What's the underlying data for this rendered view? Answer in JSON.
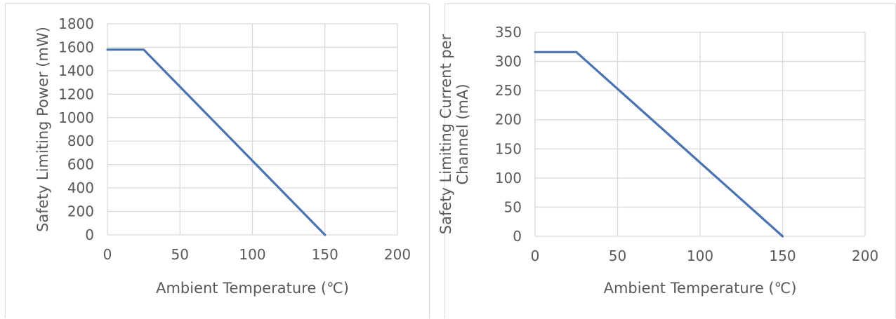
{
  "charts": [
    {
      "chart_data": {
        "type": "line",
        "title": "",
        "xlabel": "Ambient Temperature (℃)",
        "ylabel": [
          "Safety Limiting Power (mW)"
        ],
        "xlim": [
          0,
          200
        ],
        "ylim": [
          0,
          1800
        ],
        "x_ticks": [
          "0",
          "50",
          "100",
          "150",
          "200"
        ],
        "y_ticks": [
          "0",
          "200",
          "400",
          "600",
          "800",
          "1000",
          "1200",
          "1400",
          "1600",
          "1800"
        ],
        "grid": true,
        "legend": "none",
        "series": [
          {
            "color": "#4a74b0",
            "points": [
              [
                0,
                1580
              ],
              [
                25,
                1580
              ],
              [
                150,
                0
              ]
            ]
          }
        ]
      }
    },
    {
      "chart_data": {
        "type": "line",
        "title": "",
        "xlabel": "Ambient Temperature (℃)",
        "ylabel": [
          "Safety Limiting Current per",
          "Channel (mA)"
        ],
        "xlim": [
          0,
          200
        ],
        "ylim": [
          0,
          350
        ],
        "x_ticks": [
          "0",
          "50",
          "100",
          "150",
          "200"
        ],
        "y_ticks": [
          "0",
          "50",
          "100",
          "150",
          "200",
          "250",
          "300",
          "350"
        ],
        "grid": true,
        "legend": "none",
        "series": [
          {
            "color": "#4a74b0",
            "points": [
              [
                0,
                316
              ],
              [
                25,
                316
              ],
              [
                150,
                0
              ]
            ]
          }
        ]
      }
    }
  ],
  "style": {
    "grid_color": "#d9d9d9",
    "text_color": "#595959"
  }
}
